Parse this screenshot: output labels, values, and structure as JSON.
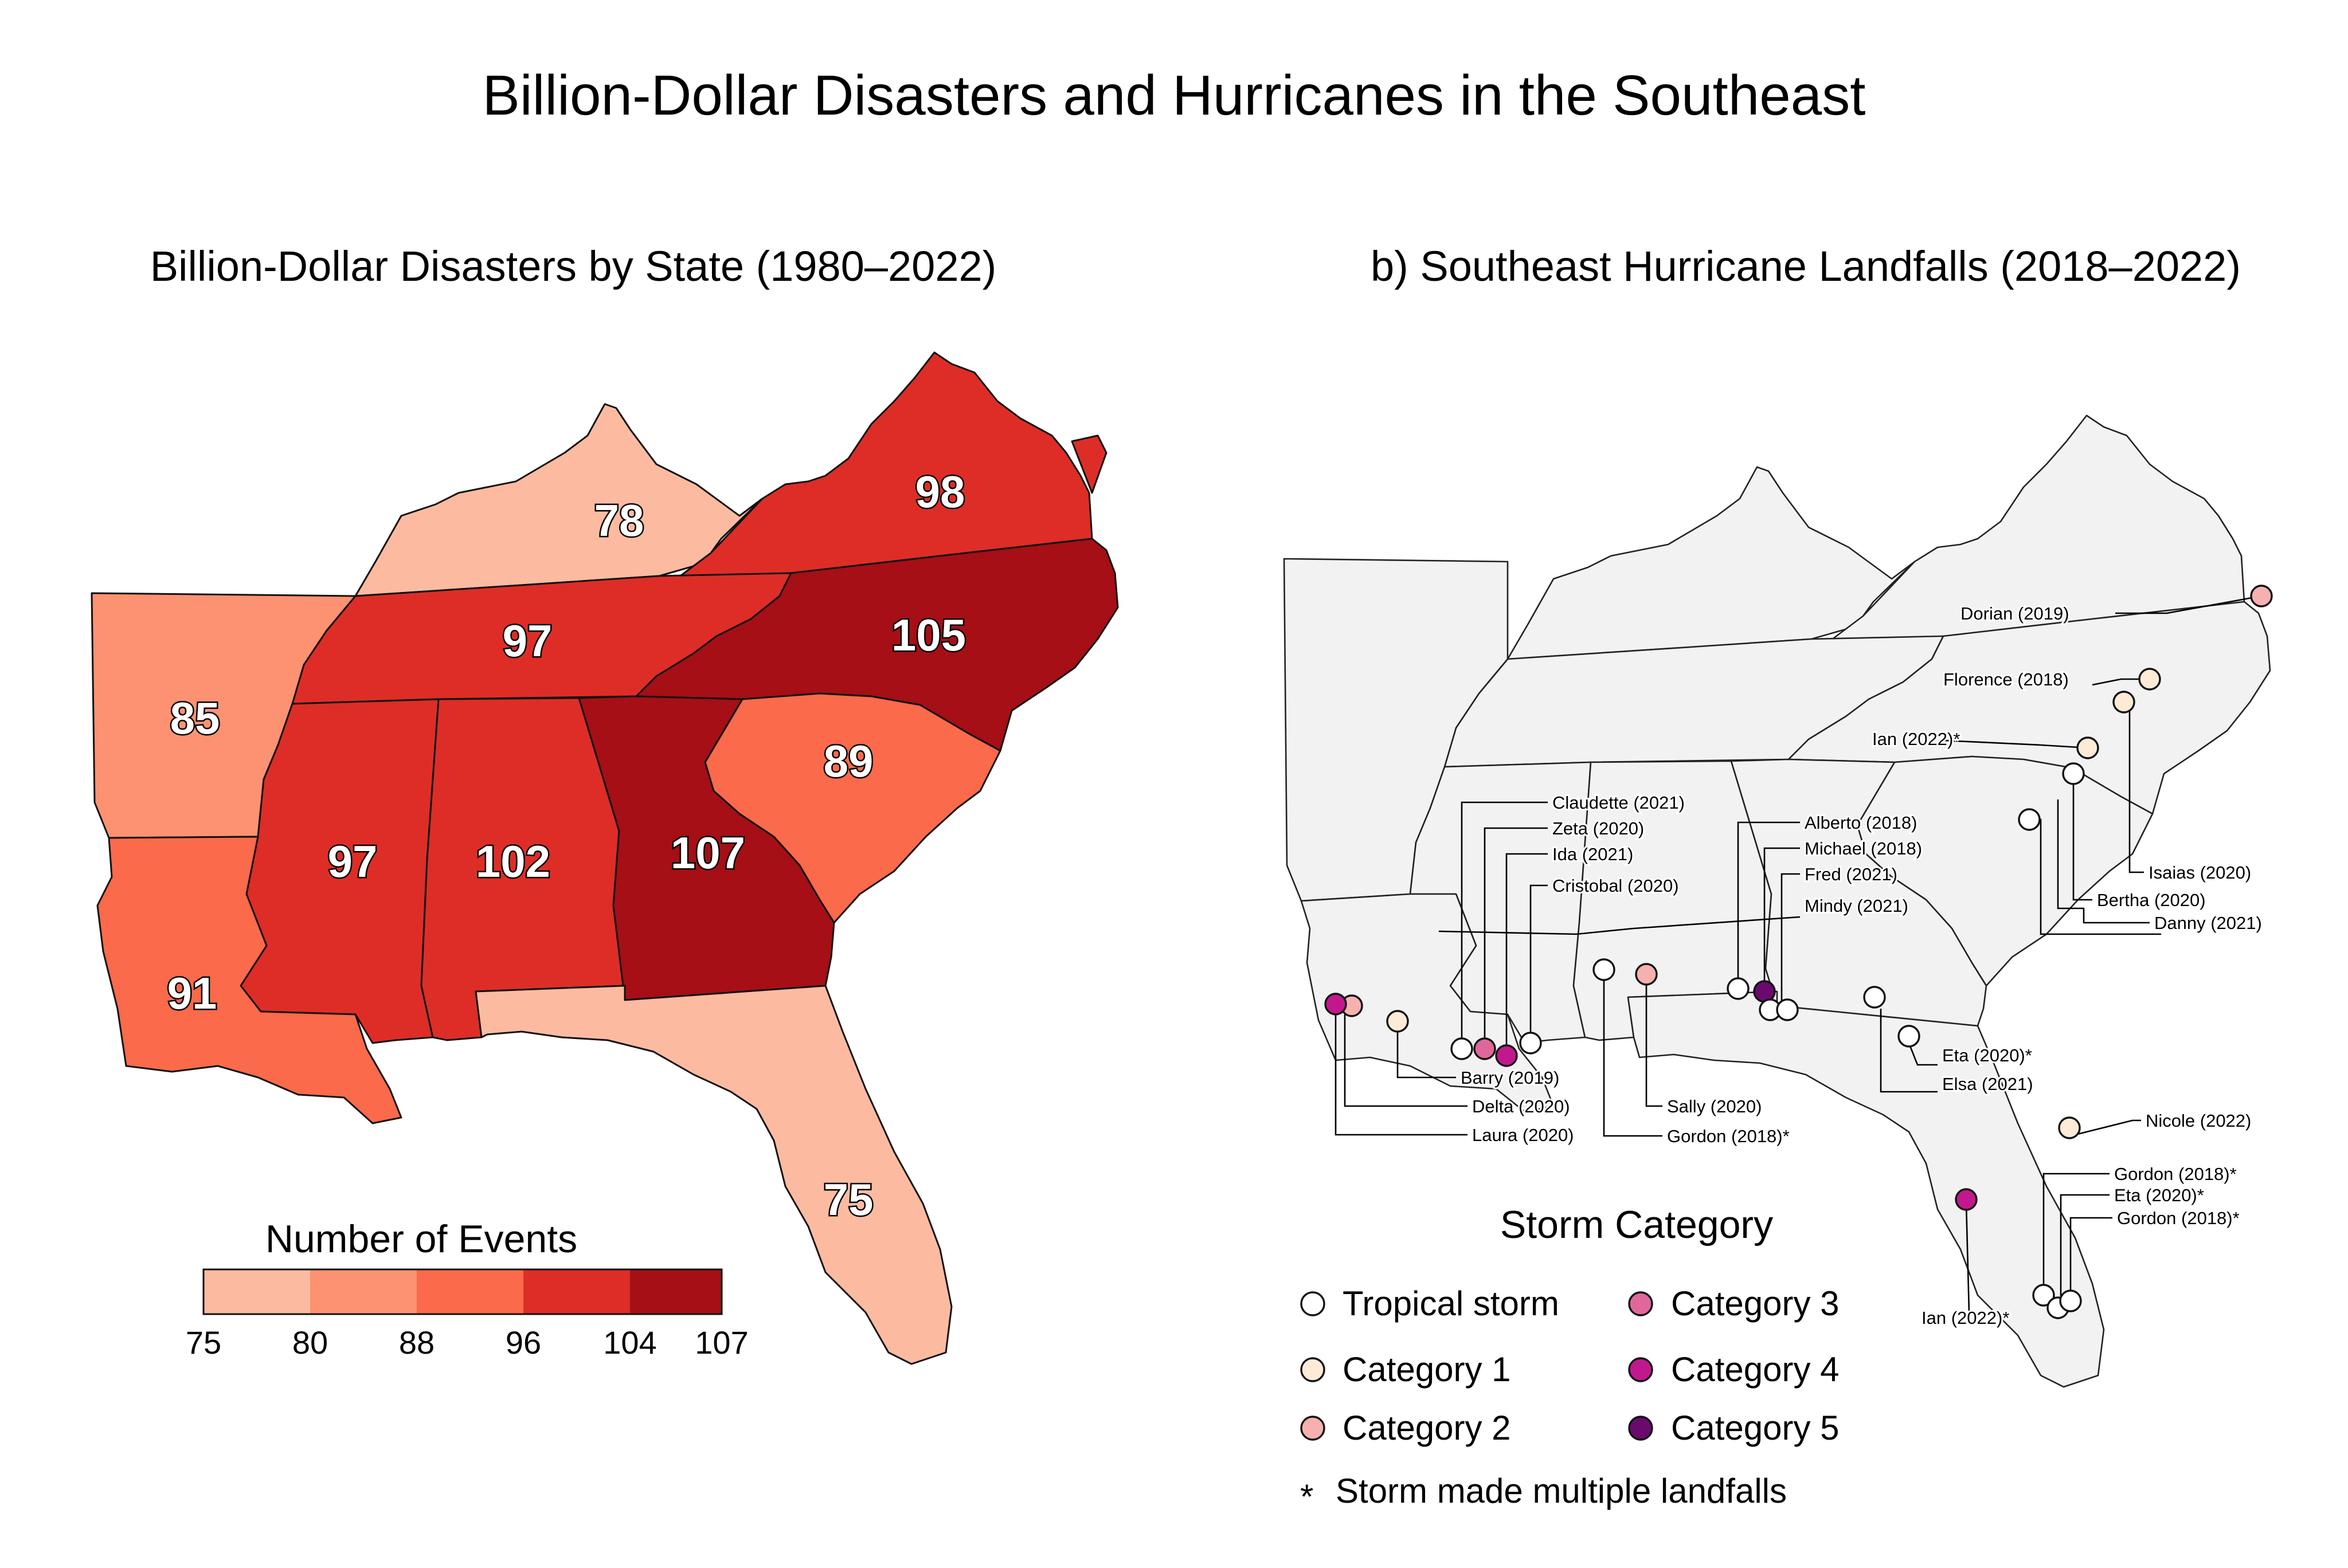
{
  "title": "Billion-Dollar Disasters and Hurricanes in the Southeast",
  "panel_a": {
    "title": "Billion-Dollar Disasters by State (1980–2022)",
    "legend": {
      "title": "Number of Events",
      "ticks": [
        "75",
        "80",
        "88",
        "96",
        "104",
        "107"
      ],
      "colors": [
        "#fcbba1",
        "#fc9272",
        "#fb6a4a",
        "#de2d26",
        "#a50f15"
      ]
    },
    "states": [
      {
        "name": "Kentucky",
        "value": "78",
        "color": "#fcbba1"
      },
      {
        "name": "Virginia",
        "value": "98",
        "color": "#de2d26"
      },
      {
        "name": "Tennessee",
        "value": "97",
        "color": "#de2d26"
      },
      {
        "name": "North Carolina",
        "value": "105",
        "color": "#a50f15"
      },
      {
        "name": "Arkansas",
        "value": "85",
        "color": "#fc9272"
      },
      {
        "name": "South Carolina",
        "value": "89",
        "color": "#fb6a4a"
      },
      {
        "name": "Mississippi",
        "value": "97",
        "color": "#de2d26"
      },
      {
        "name": "Alabama",
        "value": "102",
        "color": "#de2d26"
      },
      {
        "name": "Georgia",
        "value": "107",
        "color": "#a50f15"
      },
      {
        "name": "Louisiana",
        "value": "91",
        "color": "#fb6a4a"
      },
      {
        "name": "Florida",
        "value": "75",
        "color": "#fcbba1"
      }
    ]
  },
  "panel_b": {
    "title": "b)  Southeast Hurricane Landfalls (2018–2022)",
    "storms": [
      {
        "label": "Dorian (2019)",
        "category": "cat2"
      },
      {
        "label": "Florence (2018)",
        "category": "cat1"
      },
      {
        "label": "Ian (2022)*",
        "category": "cat1"
      },
      {
        "label": "Isaias (2020)",
        "category": "cat1"
      },
      {
        "label": "Bertha (2020)",
        "category": "ts"
      },
      {
        "label": "Danny (2021)",
        "category": "ts"
      },
      {
        "label": "Claudette (2021)",
        "category": "ts"
      },
      {
        "label": "Zeta (2020)",
        "category": "cat3"
      },
      {
        "label": "Ida (2021)",
        "category": "cat4"
      },
      {
        "label": "Cristobal (2020)",
        "category": "ts"
      },
      {
        "label": "Alberto (2018)",
        "category": "ts"
      },
      {
        "label": "Michael (2018)",
        "category": "cat5"
      },
      {
        "label": "Fred (2021)",
        "category": "ts"
      },
      {
        "label": "Mindy (2021)",
        "category": "ts"
      },
      {
        "label": "Barry (2019)",
        "category": "cat1"
      },
      {
        "label": "Delta (2020)",
        "category": "cat2"
      },
      {
        "label": "Laura (2020)",
        "category": "cat4"
      },
      {
        "label": "Sally (2020)",
        "category": "cat2"
      },
      {
        "label": "Gordon (2018)*",
        "category": "ts"
      },
      {
        "label": "Eta (2020)*",
        "category": "ts"
      },
      {
        "label": "Elsa (2021)",
        "category": "ts"
      },
      {
        "label": "Nicole (2022)",
        "category": "cat1"
      },
      {
        "label": "Gordon (2018)*",
        "category": "ts"
      },
      {
        "label": "Eta (2020)*",
        "category": "ts"
      },
      {
        "label": "Gordon (2018)*",
        "category": "ts"
      },
      {
        "label": "Ian (2022)*",
        "category": "cat4"
      }
    ],
    "legend": {
      "title": "Storm Category",
      "items": [
        {
          "key": "ts",
          "label": "Tropical storm",
          "color": "#ffffff"
        },
        {
          "key": "cat1",
          "label": "Category 1",
          "color": "#fdebd7"
        },
        {
          "key": "cat2",
          "label": "Category 2",
          "color": "#f7b0b0"
        },
        {
          "key": "cat3",
          "label": "Category 3",
          "color": "#e0679b"
        },
        {
          "key": "cat4",
          "label": "Category 4",
          "color": "#c2188e"
        },
        {
          "key": "cat5",
          "label": "Category 5",
          "color": "#6b0a6e"
        }
      ],
      "note_symbol": "*",
      "note": "Storm made multiple landfalls"
    }
  }
}
